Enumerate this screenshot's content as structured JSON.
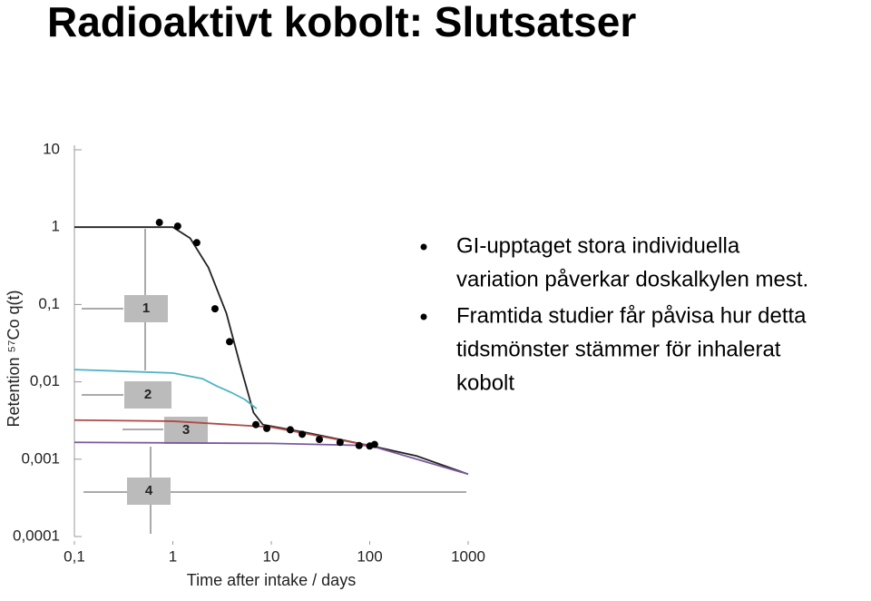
{
  "slide": {
    "title": "Radioaktivt kobolt: Slutsatser",
    "bullets": [
      [
        "GI-upptaget stora individuella",
        "variation påverkar doskalkylen mest."
      ],
      [
        "Framtida studier får påvisa hur detta",
        "tidsmönster stämmer för inhalerat",
        "kobolt"
      ]
    ]
  },
  "chart_data": {
    "type": "line",
    "x_label": "Time after intake / days",
    "y_label": "Retention ⁵⁷Co q(t)",
    "log_x": true,
    "log_y": true,
    "xlim": [
      0.1,
      1000
    ],
    "ylim": [
      0.0001,
      10
    ],
    "xticks": [
      {
        "value": 0.1,
        "label": "0,1"
      },
      1,
      10,
      100,
      1000
    ],
    "yticks": [
      {
        "value": 0.0001,
        "label": "0,0001"
      },
      {
        "value": 0.001,
        "label": "0,001"
      },
      {
        "value": 0.01,
        "label": "0,01"
      },
      {
        "value": 0.1,
        "label": "0,1"
      },
      1,
      10
    ],
    "series": [
      {
        "name": "1",
        "color": "#222222",
        "x": [
          0.1,
          1,
          1.5,
          2.3,
          3.5,
          4.8,
          6.6,
          8.2,
          23,
          100,
          300,
          1000
        ],
        "values": [
          1,
          1,
          0.72,
          0.3,
          0.077,
          0.017,
          0.004,
          0.0028,
          0.0022,
          0.0015,
          0.0011,
          0.00064
        ]
      },
      {
        "name": "2",
        "color": "#4fb3c4",
        "x": [
          0.1,
          1,
          2,
          2.8,
          4,
          5.4,
          7.1
        ],
        "values": [
          0.0144,
          0.013,
          0.011,
          0.0088,
          0.0072,
          0.0059,
          0.0045
        ]
      },
      {
        "name": "3",
        "color": "#b04a45",
        "x": [
          0.1,
          1,
          10,
          30,
          100
        ],
        "values": [
          0.0032,
          0.0031,
          0.0026,
          0.002,
          0.0015
        ]
      },
      {
        "name": "4",
        "color": "#7a5a9e",
        "x": [
          0.1,
          10,
          100,
          300,
          1000
        ],
        "values": [
          0.00165,
          0.0016,
          0.0015,
          0.001,
          0.00064
        ]
      }
    ],
    "measurements": {
      "type": "scatter",
      "color": "#000000",
      "x": [
        0.73,
        1.12,
        1.75,
        2.68,
        3.77,
        6.97,
        9.0,
        15.6,
        20.6,
        30.8,
        50,
        78,
        100,
        112
      ],
      "values": [
        1.15,
        1.03,
        0.63,
        0.088,
        0.033,
        0.0028,
        0.0025,
        0.0024,
        0.0021,
        0.0018,
        0.00165,
        0.0015,
        0.00148,
        0.00155
      ]
    }
  }
}
